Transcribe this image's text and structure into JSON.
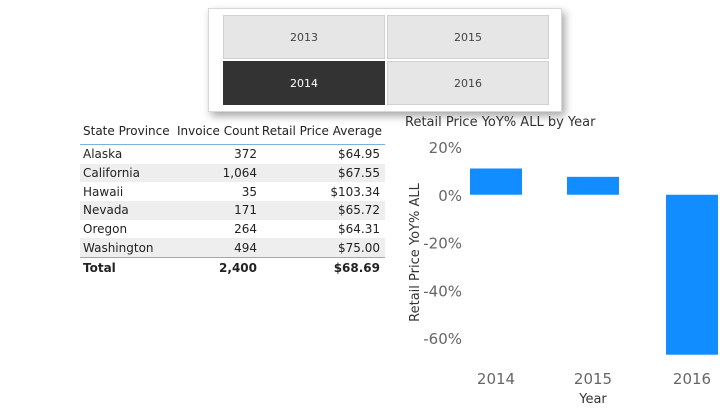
{
  "slicer": {
    "items": [
      {
        "label": "2013",
        "selected": false
      },
      {
        "label": "2015",
        "selected": false
      },
      {
        "label": "2014",
        "selected": true
      },
      {
        "label": "2016",
        "selected": false
      }
    ]
  },
  "table": {
    "headers": [
      "State Province",
      "Invoice Count",
      "Retail Price Average"
    ],
    "rows": [
      {
        "state": "Alaska",
        "count": "372",
        "avg": "$64.95"
      },
      {
        "state": "California",
        "count": "1,064",
        "avg": "$67.55"
      },
      {
        "state": "Hawaii",
        "count": "35",
        "avg": "$103.34"
      },
      {
        "state": "Nevada",
        "count": "171",
        "avg": "$65.72"
      },
      {
        "state": "Oregon",
        "count": "264",
        "avg": "$64.31"
      },
      {
        "state": "Washington",
        "count": "494",
        "avg": "$75.00"
      }
    ],
    "total": {
      "label": "Total",
      "count": "2,400",
      "avg": "$68.69"
    }
  },
  "chart_data": {
    "type": "bar",
    "title": "Retail Price YoY% ALL by Year",
    "xlabel": "Year",
    "ylabel": "Retail Price YoY% ALL",
    "categories": [
      "2014",
      "2015",
      "2016"
    ],
    "values": [
      11,
      7.5,
      -67
    ],
    "yticks": [
      "20%",
      "0%",
      "-20%",
      "-40%",
      "-60%"
    ],
    "ylim": [
      -70,
      22
    ],
    "bar_color": "#118DFF"
  }
}
